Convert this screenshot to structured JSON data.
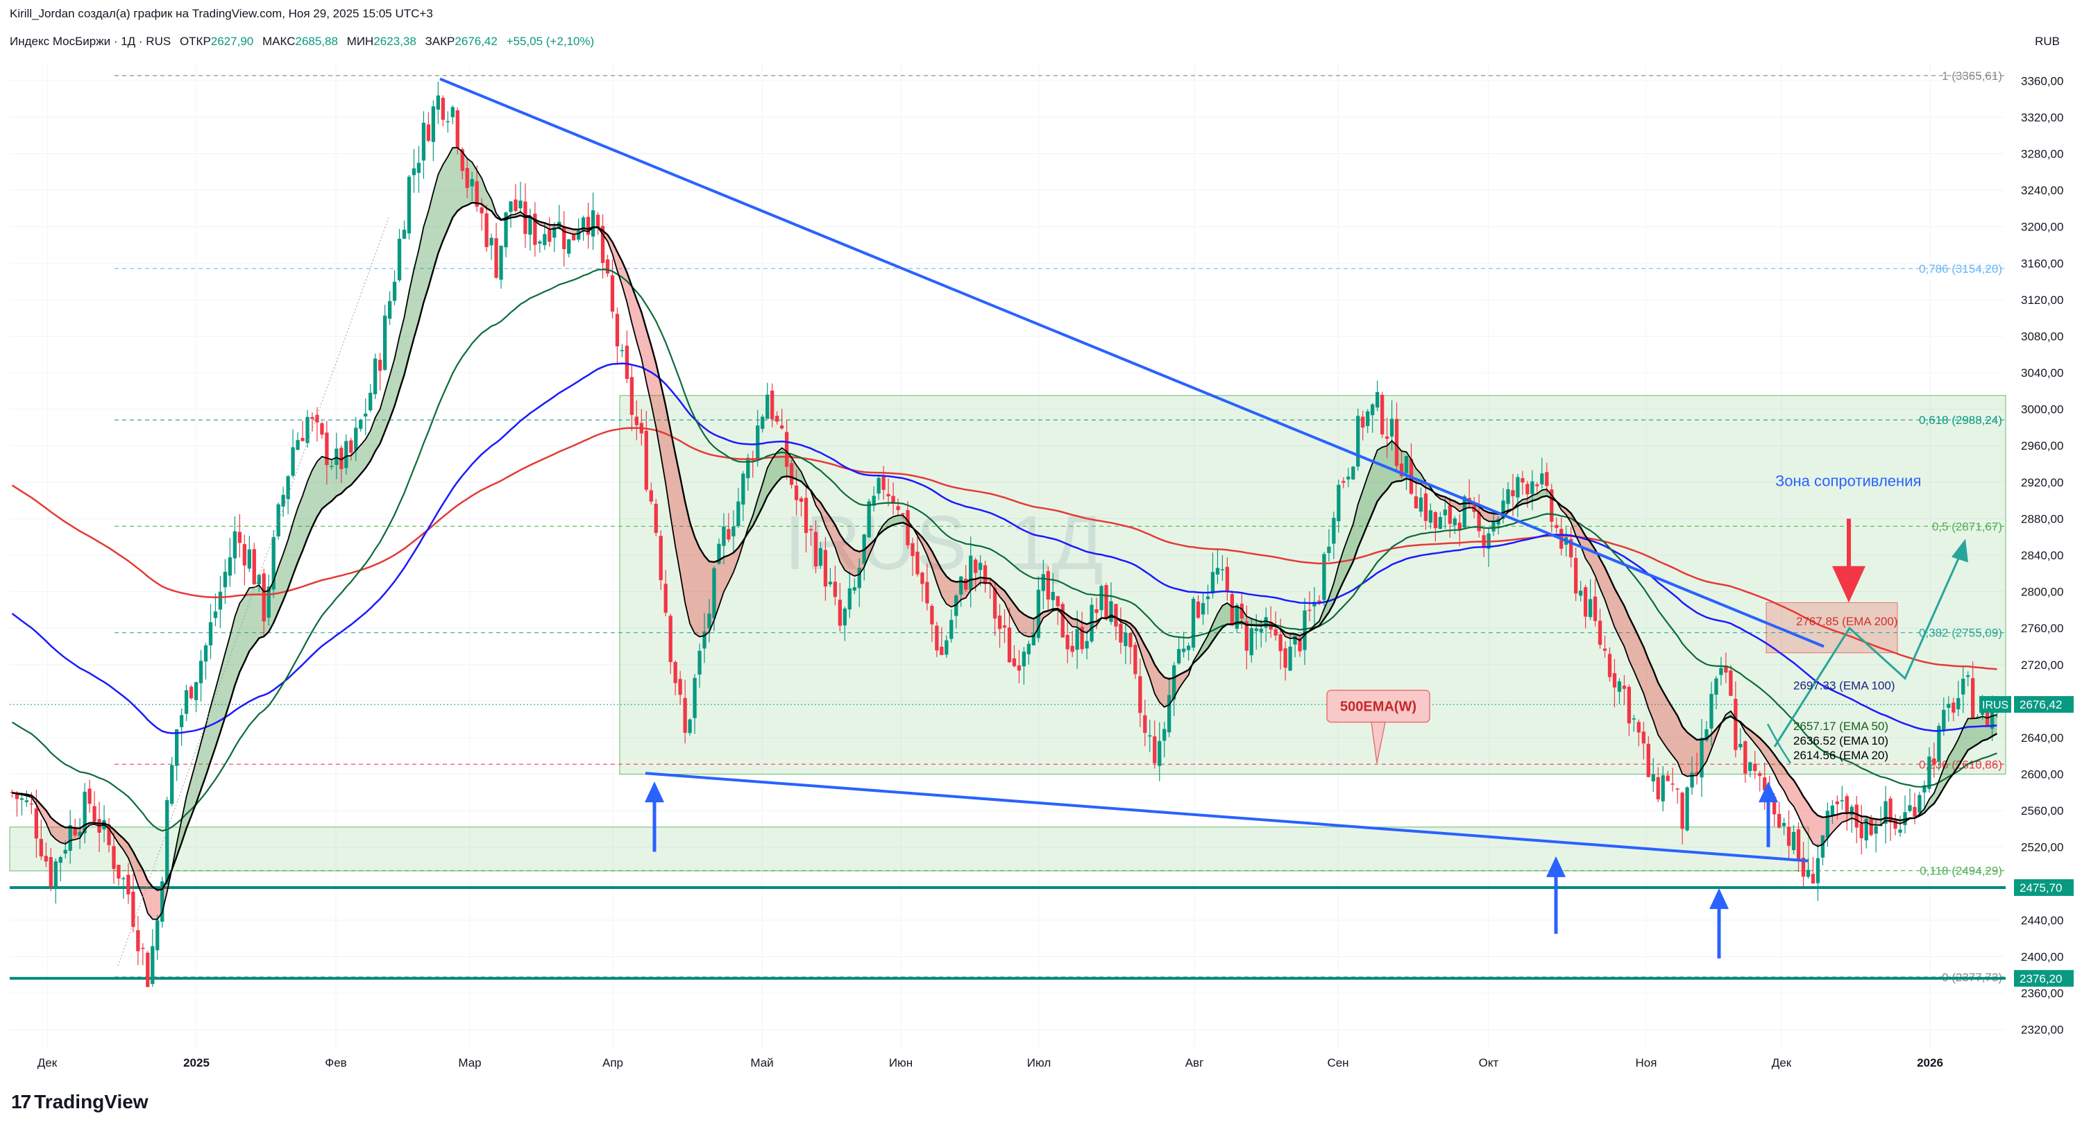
{
  "header": {
    "author_line": "Kirill_Jordan создал(а) график на TradingView.com, Ноя 29, 2025 15:05 UTC+3",
    "symbol": "Индекс МосБиржи · 1Д · RUS",
    "open_label": "ОТКР",
    "open_value": "2627,90",
    "high_label": "МАКС",
    "high_value": "2685,88",
    "low_label": "МИН",
    "low_value": "2623,38",
    "close_label": "ЗАКР",
    "close_value": "2676,42",
    "change_value": "+55,05 (+2,10%)",
    "currency": "RUB"
  },
  "brand": {
    "logo": "17",
    "name": "TradingView"
  },
  "chart_data": {
    "type": "candlestick",
    "y_axis_ticks": [
      "3360,00",
      "3320,00",
      "3280,00",
      "3240,00",
      "3200,00",
      "3160,00",
      "3120,00",
      "3080,00",
      "3040,00",
      "3000,00",
      "2960,00",
      "2920,00",
      "2880,00",
      "2840,00",
      "2800,00",
      "2760,00",
      "2720,00",
      "2680,00",
      "2640,00",
      "2600,00",
      "2560,00",
      "2520,00",
      "2480,00",
      "2440,00",
      "2400,00",
      "2360,00",
      "2320,00"
    ],
    "ylim": [
      2300,
      3380
    ],
    "x_axis_ticks": [
      "Дек",
      "2025",
      "Фев",
      "Мар",
      "Апр",
      "Май",
      "Июн",
      "Июл",
      "Авг",
      "Сен",
      "Окт",
      "Ноя",
      "Дек",
      "2026"
    ],
    "watermark": "IRUS, 1Д",
    "price_badges": [
      {
        "label": "IRUS",
        "value": "2676,42",
        "price": 2676.42,
        "color": "#089981"
      },
      {
        "label": "",
        "value": "2475,70",
        "price": 2475.7,
        "color": "#089981"
      },
      {
        "label": "",
        "value": "2376,20",
        "price": 2376.2,
        "color": "#089981"
      }
    ],
    "fibonacci": [
      {
        "label": "1 (3365,61)",
        "price": 3365.61,
        "color": "#888888"
      },
      {
        "label": "0,786 (3154,20)",
        "price": 3154.2,
        "color": "#64b5f6"
      },
      {
        "label": "0,618 (2988,24)",
        "price": 2988.24,
        "color": "#089981"
      },
      {
        "label": "0,5 (2871,67)",
        "price": 2871.67,
        "color": "#4caf50"
      },
      {
        "label": "0,382 (2755,09)",
        "price": 2755.09,
        "color": "#26a69a"
      },
      {
        "label": "0,236 (2610,86)",
        "price": 2610.86,
        "color": "#f23645"
      },
      {
        "label": "0,118 (2494,29)",
        "price": 2494.29,
        "color": "#4caf50"
      },
      {
        "label": "0 (2377,73)",
        "price": 2377.73,
        "color": "#888888"
      }
    ],
    "ema_labels": [
      {
        "text": "2767.85 (EMA 200)",
        "price": 2767.85,
        "color": "#d32f2f"
      },
      {
        "text": "2697.33 (EMA 100)",
        "price": 2697.33,
        "color": "#1a237e"
      },
      {
        "text": "2657.17 (EMA 50)",
        "price": 2653,
        "color": "#1b5e20"
      },
      {
        "text": "2636.52 (EMA 10)",
        "price": 2637,
        "color": "#000000"
      },
      {
        "text": "2614.56 (EMA 20)",
        "price": 2621,
        "color": "#000000"
      }
    ],
    "annotations": {
      "resistance_zone": "Зона сопротивления",
      "ema500w": "500EMA(W)"
    },
    "series": [
      {
        "name": "EMA 200",
        "color": "#e53935"
      },
      {
        "name": "EMA 100",
        "color": "#1a1aff"
      },
      {
        "name": "EMA 50",
        "color": "#0b6b3a"
      },
      {
        "name": "EMA 20",
        "color": "#000000"
      },
      {
        "name": "EMA 10",
        "color": "#000000"
      }
    ],
    "candles_source": "derived-path",
    "path_points": [
      [
        0,
        2580
      ],
      [
        4,
        2560
      ],
      [
        8,
        2490
      ],
      [
        12,
        2540
      ],
      [
        16,
        2570
      ],
      [
        20,
        2520
      ],
      [
        24,
        2470
      ],
      [
        26,
        2425
      ],
      [
        28,
        2380
      ],
      [
        30,
        2440
      ],
      [
        32,
        2560
      ],
      [
        34,
        2650
      ],
      [
        37,
        2700
      ],
      [
        40,
        2740
      ],
      [
        43,
        2800
      ],
      [
        46,
        2860
      ],
      [
        49,
        2840
      ],
      [
        52,
        2780
      ],
      [
        55,
        2880
      ],
      [
        58,
        2960
      ],
      [
        61,
        2990
      ],
      [
        64,
        2960
      ],
      [
        67,
        2940
      ],
      [
        70,
        2950
      ],
      [
        73,
        3000
      ],
      [
        76,
        3060
      ],
      [
        79,
        3150
      ],
      [
        82,
        3250
      ],
      [
        85,
        3300
      ],
      [
        88,
        3340
      ],
      [
        91,
        3330
      ],
      [
        94,
        3250
      ],
      [
        97,
        3210
      ],
      [
        100,
        3160
      ],
      [
        103,
        3230
      ],
      [
        106,
        3200
      ],
      [
        109,
        3190
      ],
      [
        112,
        3210
      ],
      [
        115,
        3180
      ],
      [
        118,
        3220
      ],
      [
        121,
        3190
      ],
      [
        124,
        3100
      ],
      [
        127,
        3020
      ],
      [
        130,
        2960
      ],
      [
        133,
        2870
      ],
      [
        136,
        2740
      ],
      [
        139,
        2640
      ],
      [
        141,
        2700
      ],
      [
        144,
        2780
      ],
      [
        147,
        2860
      ],
      [
        150,
        2900
      ],
      [
        153,
        2960
      ],
      [
        156,
        3020
      ],
      [
        159,
        2960
      ],
      [
        162,
        2900
      ],
      [
        165,
        2860
      ],
      [
        168,
        2820
      ],
      [
        171,
        2760
      ],
      [
        174,
        2800
      ],
      [
        177,
        2880
      ],
      [
        180,
        2920
      ],
      [
        183,
        2900
      ],
      [
        186,
        2840
      ],
      [
        189,
        2780
      ],
      [
        192,
        2730
      ],
      [
        195,
        2790
      ],
      [
        198,
        2830
      ],
      [
        201,
        2810
      ],
      [
        204,
        2760
      ],
      [
        207,
        2720
      ],
      [
        210,
        2760
      ],
      [
        213,
        2800
      ],
      [
        216,
        2770
      ],
      [
        219,
        2740
      ],
      [
        222,
        2760
      ],
      [
        225,
        2790
      ],
      [
        228,
        2770
      ],
      [
        231,
        2720
      ],
      [
        234,
        2640
      ],
      [
        237,
        2620
      ],
      [
        240,
        2720
      ],
      [
        243,
        2760
      ],
      [
        246,
        2800
      ],
      [
        249,
        2820
      ],
      [
        252,
        2780
      ],
      [
        255,
        2750
      ],
      [
        258,
        2760
      ],
      [
        261,
        2740
      ],
      [
        264,
        2730
      ],
      [
        267,
        2760
      ],
      [
        270,
        2800
      ],
      [
        273,
        2900
      ],
      [
        276,
        2940
      ],
      [
        279,
        2990
      ],
      [
        282,
        3000
      ],
      [
        285,
        2970
      ],
      [
        288,
        2930
      ],
      [
        291,
        2900
      ],
      [
        294,
        2870
      ],
      [
        297,
        2880
      ],
      [
        300,
        2890
      ],
      [
        303,
        2860
      ],
      [
        306,
        2880
      ],
      [
        309,
        2900
      ],
      [
        312,
        2920
      ],
      [
        315,
        2930
      ],
      [
        318,
        2880
      ],
      [
        321,
        2840
      ],
      [
        324,
        2800
      ],
      [
        327,
        2760
      ],
      [
        330,
        2720
      ],
      [
        333,
        2690
      ],
      [
        336,
        2640
      ],
      [
        339,
        2580
      ],
      [
        342,
        2600
      ],
      [
        345,
        2550
      ],
      [
        348,
        2600
      ],
      [
        351,
        2680
      ],
      [
        354,
        2710
      ],
      [
        356,
        2640
      ],
      [
        359,
        2600
      ],
      [
        362,
        2580
      ],
      [
        365,
        2560
      ],
      [
        368,
        2520
      ],
      [
        371,
        2480
      ],
      [
        374,
        2530
      ],
      [
        377,
        2560
      ],
      [
        380,
        2550
      ],
      [
        383,
        2540
      ],
      [
        386,
        2560
      ],
      [
        389,
        2540
      ],
      [
        392,
        2560
      ],
      [
        395,
        2600
      ],
      [
        398,
        2640
      ],
      [
        401,
        2680
      ],
      [
        404,
        2690
      ],
      [
        407,
        2660
      ],
      [
        410,
        2676
      ]
    ]
  }
}
